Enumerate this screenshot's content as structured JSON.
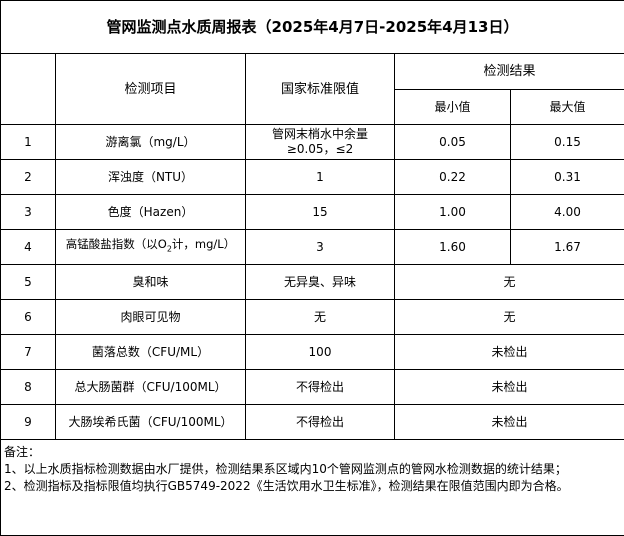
{
  "title": "管网监测点水质周报表（2025年4月7日-2025年4月13日）",
  "headers": {
    "item": "检测项目",
    "standard": "国家标准限值",
    "result": "检测结果",
    "min": "最小值",
    "max": "最大值"
  },
  "rows": [
    {
      "no": "1",
      "item": "游离氯（mg/L）",
      "standard": "管网末梢水中余量≥0.05，≤2",
      "min": "0.05",
      "max": "0.15"
    },
    {
      "no": "2",
      "item": "浑浊度（NTU）",
      "standard": "1",
      "min": "0.22",
      "max": "0.31"
    },
    {
      "no": "3",
      "item": "色度（Hazen）",
      "standard": "15",
      "min": "1.00",
      "max": "4.00"
    },
    {
      "no": "4",
      "item_prefix": "高锰酸盐指数（以O",
      "item_sub": "2",
      "item_suffix": "计，mg/L）",
      "standard": "3",
      "min": "1.60",
      "max": "1.67"
    },
    {
      "no": "5",
      "item": "臭和味",
      "standard": "无异臭、异味",
      "result": "无"
    },
    {
      "no": "6",
      "item": "肉眼可见物",
      "standard": "无",
      "result": "无"
    },
    {
      "no": "7",
      "item": "菌落总数（CFU/ML）",
      "standard": "100",
      "result": "未检出"
    },
    {
      "no": "8",
      "item": "总大肠菌群（CFU/100ML）",
      "standard": "不得检出",
      "result": "未检出"
    },
    {
      "no": "9",
      "item": "大肠埃希氏菌（CFU/100ML）",
      "standard": "不得检出",
      "result": "未检出"
    }
  ],
  "notes": {
    "label": "备注：",
    "line1": "1、以上水质指标检测数据由水厂提供，检测结果系区域内10个管网监测点的管网水检测数据的统计结果；",
    "line2": "2、检测指标及指标限值均执行GB5749-2022《生活饮用水卫生标准》，检测结果在限值范围内即为合格。"
  }
}
